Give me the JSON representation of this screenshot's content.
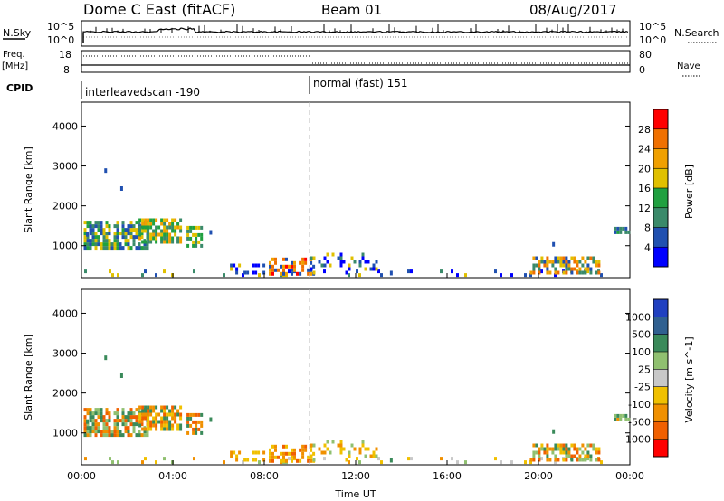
{
  "header": {
    "station": "Dome C East (fitACF)",
    "beam": "Beam 01",
    "date": "08/Aug/2017"
  },
  "panels": {
    "nsky": {
      "label": "N.Sky",
      "right_label": "N.Search",
      "left_ticks": [
        "10^5",
        "10^0"
      ],
      "right_ticks": [
        "10^5",
        "10^0"
      ]
    },
    "freq": {
      "label_top": "Freq.",
      "label_unit": "[MHz]",
      "right_label": "Nave",
      "left_ticks": [
        "18",
        "8"
      ],
      "right_ticks": [
        "80",
        "0"
      ]
    },
    "cpid": {
      "label": "CPID",
      "segments": [
        "interleavedscan -190",
        "normal (fast) 151"
      ]
    }
  },
  "chart_data": [
    {
      "type": "heatmap",
      "name": "power",
      "ylabel": "Slant Range [km]",
      "ylim": [
        200,
        4600
      ],
      "yticks": [
        1000,
        2000,
        3000,
        4000
      ],
      "x_hours": [
        0,
        4,
        8,
        12,
        16,
        20,
        24
      ],
      "colorbar": {
        "label": "Power [dB]",
        "ticks": [
          "4",
          "8",
          "12",
          "16",
          "20",
          "24",
          "28"
        ],
        "colors": [
          "#0000ff",
          "#2050b0",
          "#3a8a6a",
          "#20a040",
          "#e0c000",
          "#f0a000",
          "#f07000",
          "#ff0000"
        ]
      }
    },
    {
      "type": "heatmap",
      "name": "velocity",
      "ylabel": "Slant Range [km]",
      "ylim": [
        200,
        4600
      ],
      "yticks": [
        1000,
        2000,
        3000,
        4000
      ],
      "x_hours": [
        0,
        4,
        8,
        12,
        16,
        20,
        24
      ],
      "colorbar": {
        "label": "Velocity [m s^-1]",
        "ticks": [
          "1000",
          "500",
          "100",
          "25",
          "-25",
          "-100",
          "-500",
          "-1000"
        ],
        "colors": [
          "#2040c0",
          "#306090",
          "#3a8a5a",
          "#90c070",
          "#c8c8c8",
          "#f0c000",
          "#f09000",
          "#f06000",
          "#ff0000"
        ]
      }
    }
  ],
  "xaxis": {
    "ticks": [
      "00:00",
      "04:00",
      "08:00",
      "12:00",
      "16:00",
      "20:00",
      "00:00"
    ],
    "label": "Time UT"
  }
}
